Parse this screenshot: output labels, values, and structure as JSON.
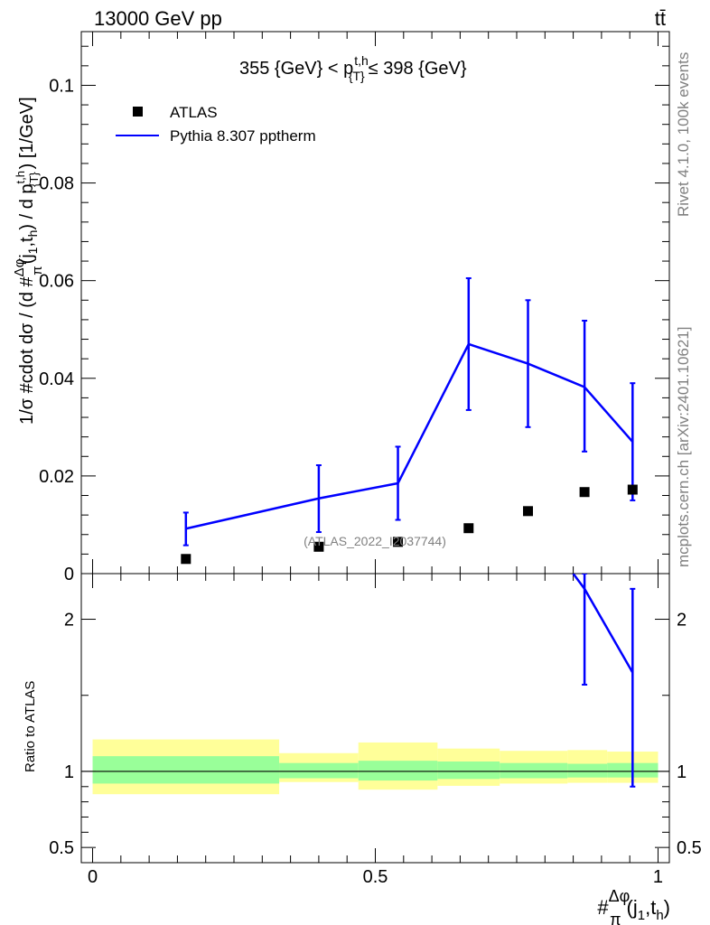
{
  "header": {
    "beam": "13000 GeV pp",
    "process": "tt̄"
  },
  "side_labels": {
    "rivet": "Rivet 4.1.0,  100k events",
    "source": "mcplots.cern.ch [arXiv:2401.10621]"
  },
  "chart_data": {
    "type": "line",
    "title": "355 {GeV} < p_{T}^{t,h} ≤ 398 {GeV}",
    "title_parts": {
      "pre": "355 {GeV} < p",
      "sup": "t,h",
      "sub": "{T}",
      "post": "≤ 398 {GeV}"
    },
    "watermark": "(ATLAS_2022_I2037744)",
    "xlabel": "#Δφ/π(j_1,t_h)",
    "xlabel_parts": {
      "hash": "#",
      "num": "Δφ",
      "den": "π",
      "args": "(j",
      "sub1": "1",
      "comma": ",t",
      "sub2": "h",
      "close": ")"
    },
    "ylabel": "1/σ #cdot dσ / (d #Δφ/π(j_1,t_h) / d p_{T}^{t,h}) [1/GeV]",
    "ylabel_parts": {
      "pre": "1/σ #cdot dσ / (d #",
      "frac_num": "Δφ",
      "frac_den": "π",
      "args": "(j",
      "s1": "1",
      "mid": ",t",
      "s2": "h",
      "post1": ") / d p",
      "sup": "t,h",
      "sub": "{T}",
      "post2": ") [1/GeV]"
    },
    "xlim": [
      -0.02,
      1.02
    ],
    "ylim": [
      0,
      0.111
    ],
    "x_ticks": [
      {
        "v": 0,
        "label": "0"
      },
      {
        "v": 0.5,
        "label": "0.5"
      },
      {
        "v": 1,
        "label": "1"
      }
    ],
    "y_ticks": [
      {
        "v": 0,
        "label": "0"
      },
      {
        "v": 0.02,
        "label": "0.02"
      },
      {
        "v": 0.04,
        "label": "0.04"
      },
      {
        "v": 0.06,
        "label": "0.06"
      },
      {
        "v": 0.08,
        "label": "0.08"
      },
      {
        "v": 0.1,
        "label": "0.1"
      }
    ],
    "legend": {
      "position": "top-left",
      "data_label": "ATLAS",
      "mc_label": "Pythia 8.307 pptherm"
    },
    "data_series": {
      "name": "ATLAS",
      "x": [
        0.165,
        0.4,
        0.54,
        0.665,
        0.77,
        0.87,
        0.955
      ],
      "y": [
        0.003,
        0.0055,
        0.0065,
        0.0093,
        0.0128,
        0.0167,
        0.0172
      ]
    },
    "mc_series": {
      "name": "Pythia 8.307 pptherm",
      "x": [
        0.165,
        0.4,
        0.54,
        0.665,
        0.77,
        0.87,
        0.955
      ],
      "y": [
        0.0092,
        0.0154,
        0.0185,
        0.047,
        0.043,
        0.0382,
        0.027
      ],
      "err_low": [
        0.0058,
        0.0085,
        0.011,
        0.0335,
        0.03,
        0.025,
        0.015
      ],
      "err_high": [
        0.0125,
        0.0222,
        0.026,
        0.0605,
        0.056,
        0.0518,
        0.039
      ]
    },
    "ratio": {
      "ylabel": "Ratio to ATLAS",
      "ylim": [
        0.4,
        2.3
      ],
      "y_ticks": [
        {
          "v": 0.5,
          "label": "0.5"
        },
        {
          "v": 1,
          "label": "1"
        },
        {
          "v": 2,
          "label": "2"
        }
      ],
      "bins": [
        {
          "x0": 0.0,
          "x1": 0.33,
          "inner": [
            0.92,
            1.1
          ],
          "outer": [
            0.85,
            1.21
          ]
        },
        {
          "x0": 0.33,
          "x1": 0.47,
          "inner": [
            0.955,
            1.055
          ],
          "outer": [
            0.93,
            1.12
          ]
        },
        {
          "x0": 0.47,
          "x1": 0.61,
          "inner": [
            0.94,
            1.07
          ],
          "outer": [
            0.88,
            1.19
          ]
        },
        {
          "x0": 0.61,
          "x1": 0.72,
          "inner": [
            0.95,
            1.065
          ],
          "outer": [
            0.905,
            1.15
          ]
        },
        {
          "x0": 0.72,
          "x1": 0.84,
          "inner": [
            0.955,
            1.055
          ],
          "outer": [
            0.92,
            1.135
          ]
        },
        {
          "x0": 0.84,
          "x1": 0.91,
          "inner": [
            0.96,
            1.05
          ],
          "outer": [
            0.925,
            1.14
          ]
        },
        {
          "x0": 0.91,
          "x1": 1.0,
          "inner": [
            0.96,
            1.055
          ],
          "outer": [
            0.925,
            1.13
          ]
        }
      ],
      "mc_line": {
        "x": [
          0.85,
          0.87,
          0.955
        ],
        "y": [
          2.3,
          2.2,
          1.65
        ]
      },
      "mc_err": [
        {
          "x": 0.87,
          "low": 1.57,
          "high": 2.3
        },
        {
          "x": 0.955,
          "low": 0.9,
          "high": 2.2
        }
      ]
    },
    "colors": {
      "mc": "#0000ff",
      "data": "#000000",
      "band_inner": "#99ff99",
      "band_outer": "#ffff99",
      "side_text": "#808080"
    }
  }
}
